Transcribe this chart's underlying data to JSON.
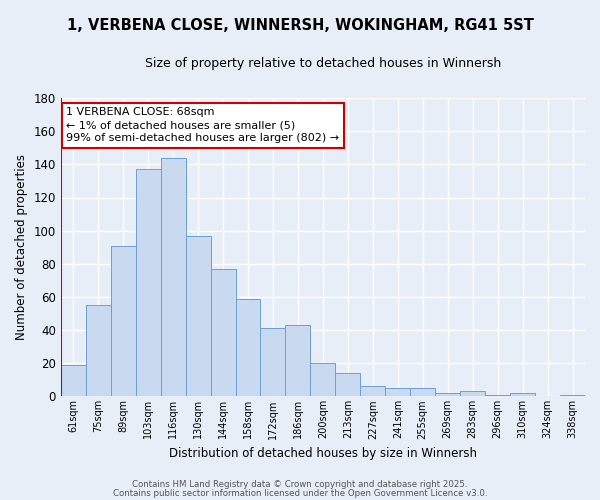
{
  "title": "1, VERBENA CLOSE, WINNERSH, WOKINGHAM, RG41 5ST",
  "subtitle": "Size of property relative to detached houses in Winnersh",
  "xlabel": "Distribution of detached houses by size in Winnersh",
  "ylabel": "Number of detached properties",
  "bin_labels": [
    "61sqm",
    "75sqm",
    "89sqm",
    "103sqm",
    "116sqm",
    "130sqm",
    "144sqm",
    "158sqm",
    "172sqm",
    "186sqm",
    "200sqm",
    "213sqm",
    "227sqm",
    "241sqm",
    "255sqm",
    "269sqm",
    "283sqm",
    "296sqm",
    "310sqm",
    "324sqm",
    "338sqm"
  ],
  "bar_values": [
    19,
    55,
    91,
    137,
    144,
    97,
    77,
    59,
    41,
    43,
    20,
    14,
    6,
    5,
    5,
    2,
    3,
    1,
    2,
    0,
    1
  ],
  "bar_color": "#c8d9f0",
  "bar_edge_color": "#6ca0d4",
  "ylim": [
    0,
    180
  ],
  "yticks": [
    0,
    20,
    40,
    60,
    80,
    100,
    120,
    140,
    160,
    180
  ],
  "vline_color": "#cc0000",
  "annotation_text": "1 VERBENA CLOSE: 68sqm\n← 1% of detached houses are smaller (5)\n99% of semi-detached houses are larger (802) →",
  "annotation_box_color": "#ffffff",
  "annotation_box_edge": "#cc0000",
  "footer1": "Contains HM Land Registry data © Crown copyright and database right 2025.",
  "footer2": "Contains public sector information licensed under the Open Government Licence v3.0.",
  "background_color": "#e8eef8",
  "grid_color": "#ffffff"
}
